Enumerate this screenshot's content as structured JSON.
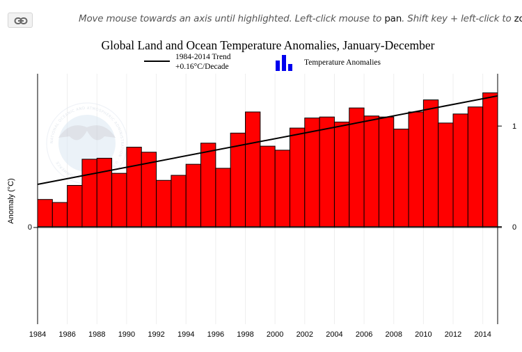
{
  "toolbar": {
    "link_icon": "link-icon",
    "hint_part1": "Move mouse towards an axis until highlighted. Left-click mouse to ",
    "hint_kw1": "pan",
    "hint_part2": ". Shift key + left-click to ",
    "hint_kw2": "zoom",
    "hint_part3": "."
  },
  "logo": {
    "text": "NOAA",
    "ring_text": "NATIONAL OCEANIC AND ATMOSPHERIC ADMINISTRATION · U.S. DEPARTMENT OF COMMERCE"
  },
  "chart_data": {
    "type": "bar",
    "title": "Global Land and Ocean Temperature Anomalies, January-December",
    "ylabel": "Anomaly (°C)",
    "xlabel": "",
    "legend": {
      "trend_label_1": "1984-2014 Trend",
      "trend_label_2": "+0.16°C/Decade",
      "bars_label": "Temperature Anomalies"
    },
    "years": [
      1984,
      1985,
      1986,
      1987,
      1988,
      1989,
      1990,
      1991,
      1992,
      1993,
      1994,
      1995,
      1996,
      1997,
      1998,
      1999,
      2000,
      2001,
      2002,
      2003,
      2004,
      2005,
      2006,
      2007,
      2008,
      2009,
      2010,
      2011,
      2012,
      2013,
      2014
    ],
    "values": [
      0.27,
      0.24,
      0.41,
      0.67,
      0.68,
      0.53,
      0.79,
      0.74,
      0.46,
      0.51,
      0.62,
      0.83,
      0.58,
      0.93,
      1.14,
      0.8,
      0.76,
      0.98,
      1.08,
      1.09,
      1.04,
      1.18,
      1.1,
      1.09,
      0.97,
      1.14,
      1.26,
      1.03,
      1.12,
      1.19,
      1.33
    ],
    "trend": {
      "start_year": 1984,
      "end_year": 2014,
      "start_value": 0.42,
      "end_value": 1.3
    },
    "x_ticks": [
      "1984",
      "1986",
      "1988",
      "1990",
      "1992",
      "1994",
      "1996",
      "1998",
      "2000",
      "2002",
      "2004",
      "2006",
      "2008",
      "2010",
      "2012",
      "2014"
    ],
    "y_ticks_left": [
      "0"
    ],
    "y_ticks_right": [
      "0",
      "1"
    ],
    "ylim": [
      -0.97,
      1.52
    ],
    "colors": {
      "bar": "#ff0000",
      "bar_stroke": "#000000",
      "trend": "#000000",
      "legend_bars": "#0000ee",
      "grid": "#eeeeee"
    }
  }
}
